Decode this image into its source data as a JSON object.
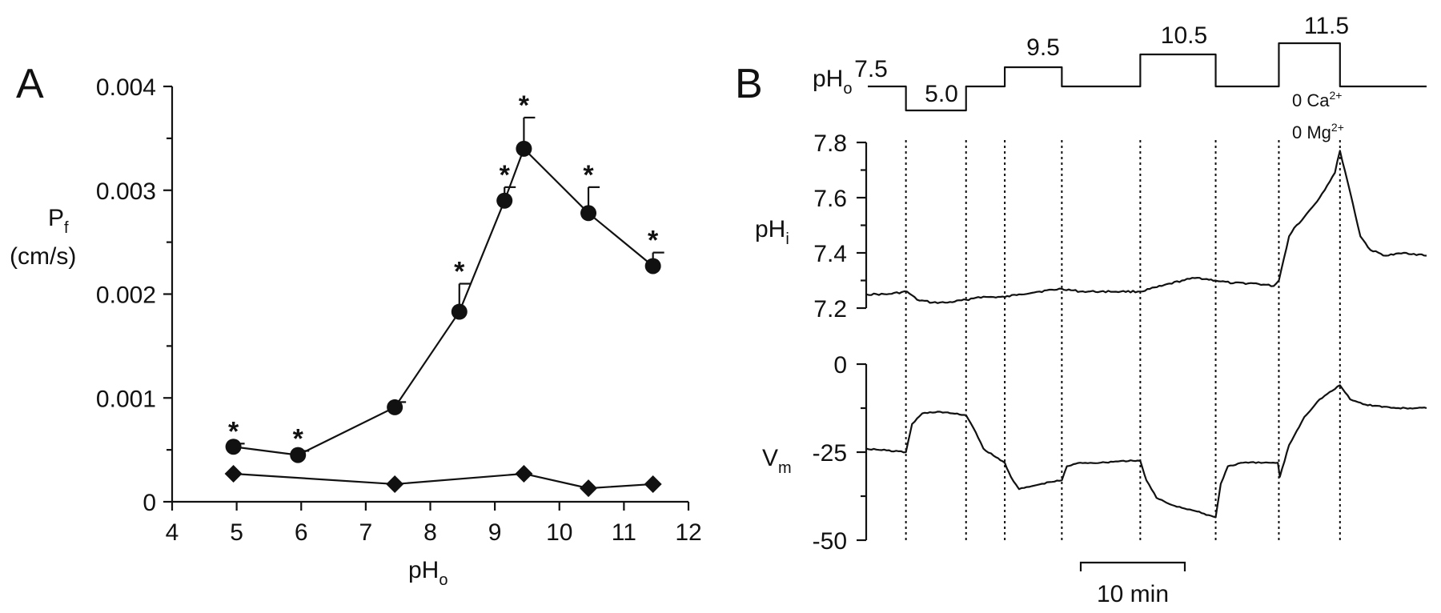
{
  "chart_data": [
    {
      "panel": "A",
      "type": "line",
      "xlabel_main": "pH",
      "xlabel_sub": "o",
      "ylabel_main": "P",
      "ylabel_sub": "f",
      "ylabel_unit": "(cm/s)",
      "xlim": [
        4,
        12
      ],
      "ylim": [
        0,
        0.004
      ],
      "x_ticks": [
        4,
        5,
        6,
        7,
        8,
        9,
        10,
        11,
        12
      ],
      "y_ticks": [
        0,
        0.001,
        0.002,
        0.003,
        0.004
      ],
      "y_tick_labels": [
        "0",
        "0.001",
        "0.002",
        "0.003",
        "0.004"
      ],
      "series": [
        {
          "marker": "circle",
          "x": [
            4.95,
            5.95,
            7.45,
            8.45,
            9.15,
            9.45,
            10.45,
            11.45
          ],
          "y": [
            0.00053,
            0.00045,
            0.00091,
            0.00183,
            0.0029,
            0.0034,
            0.00278,
            0.00227
          ],
          "error": [
            3e-05,
            4e-05,
            5e-05,
            0.00027,
            0.00013,
            0.0003,
            0.00025,
            0.00013
          ],
          "significance": [
            "*",
            "*",
            "",
            "*",
            "*",
            "*",
            "*",
            "*"
          ]
        },
        {
          "marker": "diamond",
          "x": [
            4.95,
            7.45,
            9.45,
            10.45,
            11.45
          ],
          "y": [
            0.00027,
            0.00017,
            0.00027,
            0.00013,
            0.00017
          ]
        }
      ]
    },
    {
      "panel": "B",
      "type": "line",
      "phO_label_main": "pH",
      "phO_label_sub": "o",
      "phO_levels": [
        "7.5",
        "5.0",
        "9.5",
        "10.5",
        "11.5"
      ],
      "solution_note_1": "0 Ca",
      "solution_note_1_sup": "2+",
      "solution_note_2": "0 Mg",
      "solution_note_2_sup": "2+",
      "pHi_label_main": "pH",
      "pHi_label_sub": "i",
      "pHi_ylim": [
        7.2,
        7.8
      ],
      "pHi_ticks": [
        "7.8",
        "7.6",
        "7.4",
        "7.2"
      ],
      "vm_label_main": "V",
      "vm_label_sub": "m",
      "vm_ylim": [
        -50,
        0
      ],
      "vm_ticks": [
        "0",
        "-25",
        "-50"
      ],
      "scale_bar_label": "10 min",
      "time_unit": "min",
      "solution_changes_min": [
        3.9,
        9.8,
        13.6,
        19.2,
        26.9,
        34.3,
        40.5,
        46.5
      ],
      "pHi_trace": {
        "t": [
          0,
          2,
          4,
          5,
          6.5,
          8,
          9.8,
          11,
          12.5,
          13.6,
          15,
          17,
          19.2,
          21,
          23,
          25,
          26.9,
          29,
          31,
          32.5,
          34.3,
          36,
          38,
          40,
          40.5,
          41,
          41.5,
          42,
          43,
          44.5,
          46,
          46.5,
          47.5,
          48.5,
          49.5,
          51,
          53,
          55
        ],
        "y": [
          7.25,
          7.25,
          7.26,
          7.23,
          7.22,
          7.22,
          7.23,
          7.24,
          7.24,
          7.24,
          7.25,
          7.26,
          7.27,
          7.26,
          7.26,
          7.26,
          7.26,
          7.28,
          7.3,
          7.31,
          7.3,
          7.29,
          7.29,
          7.28,
          7.3,
          7.38,
          7.46,
          7.49,
          7.53,
          7.6,
          7.69,
          7.77,
          7.62,
          7.46,
          7.41,
          7.39,
          7.4,
          7.39
        ]
      },
      "vm_trace": {
        "t": [
          0,
          2,
          3.9,
          4.5,
          5.5,
          7,
          8.5,
          9.8,
          10.5,
          11.5,
          12.5,
          13.6,
          14.2,
          15,
          16.5,
          18,
          19.2,
          19.7,
          21,
          23,
          25,
          26.9,
          27.5,
          28.5,
          30,
          32,
          34.3,
          34.8,
          35.5,
          37,
          39,
          40.4,
          40.6,
          41.5,
          43,
          44.5,
          46.5,
          47.5,
          49,
          52,
          55
        ],
        "y": [
          -24,
          -24.5,
          -25,
          -17,
          -14,
          -13.5,
          -14,
          -14.5,
          -18,
          -24,
          -26,
          -28,
          -32,
          -35.5,
          -34.5,
          -33.5,
          -33,
          -29,
          -28,
          -28,
          -27.5,
          -27.5,
          -33,
          -38,
          -40,
          -41.5,
          -43.5,
          -34,
          -29,
          -28,
          -28,
          -28,
          -32,
          -23,
          -15,
          -10,
          -6,
          -10,
          -11.5,
          -12.5,
          -12.5
        ]
      }
    }
  ]
}
